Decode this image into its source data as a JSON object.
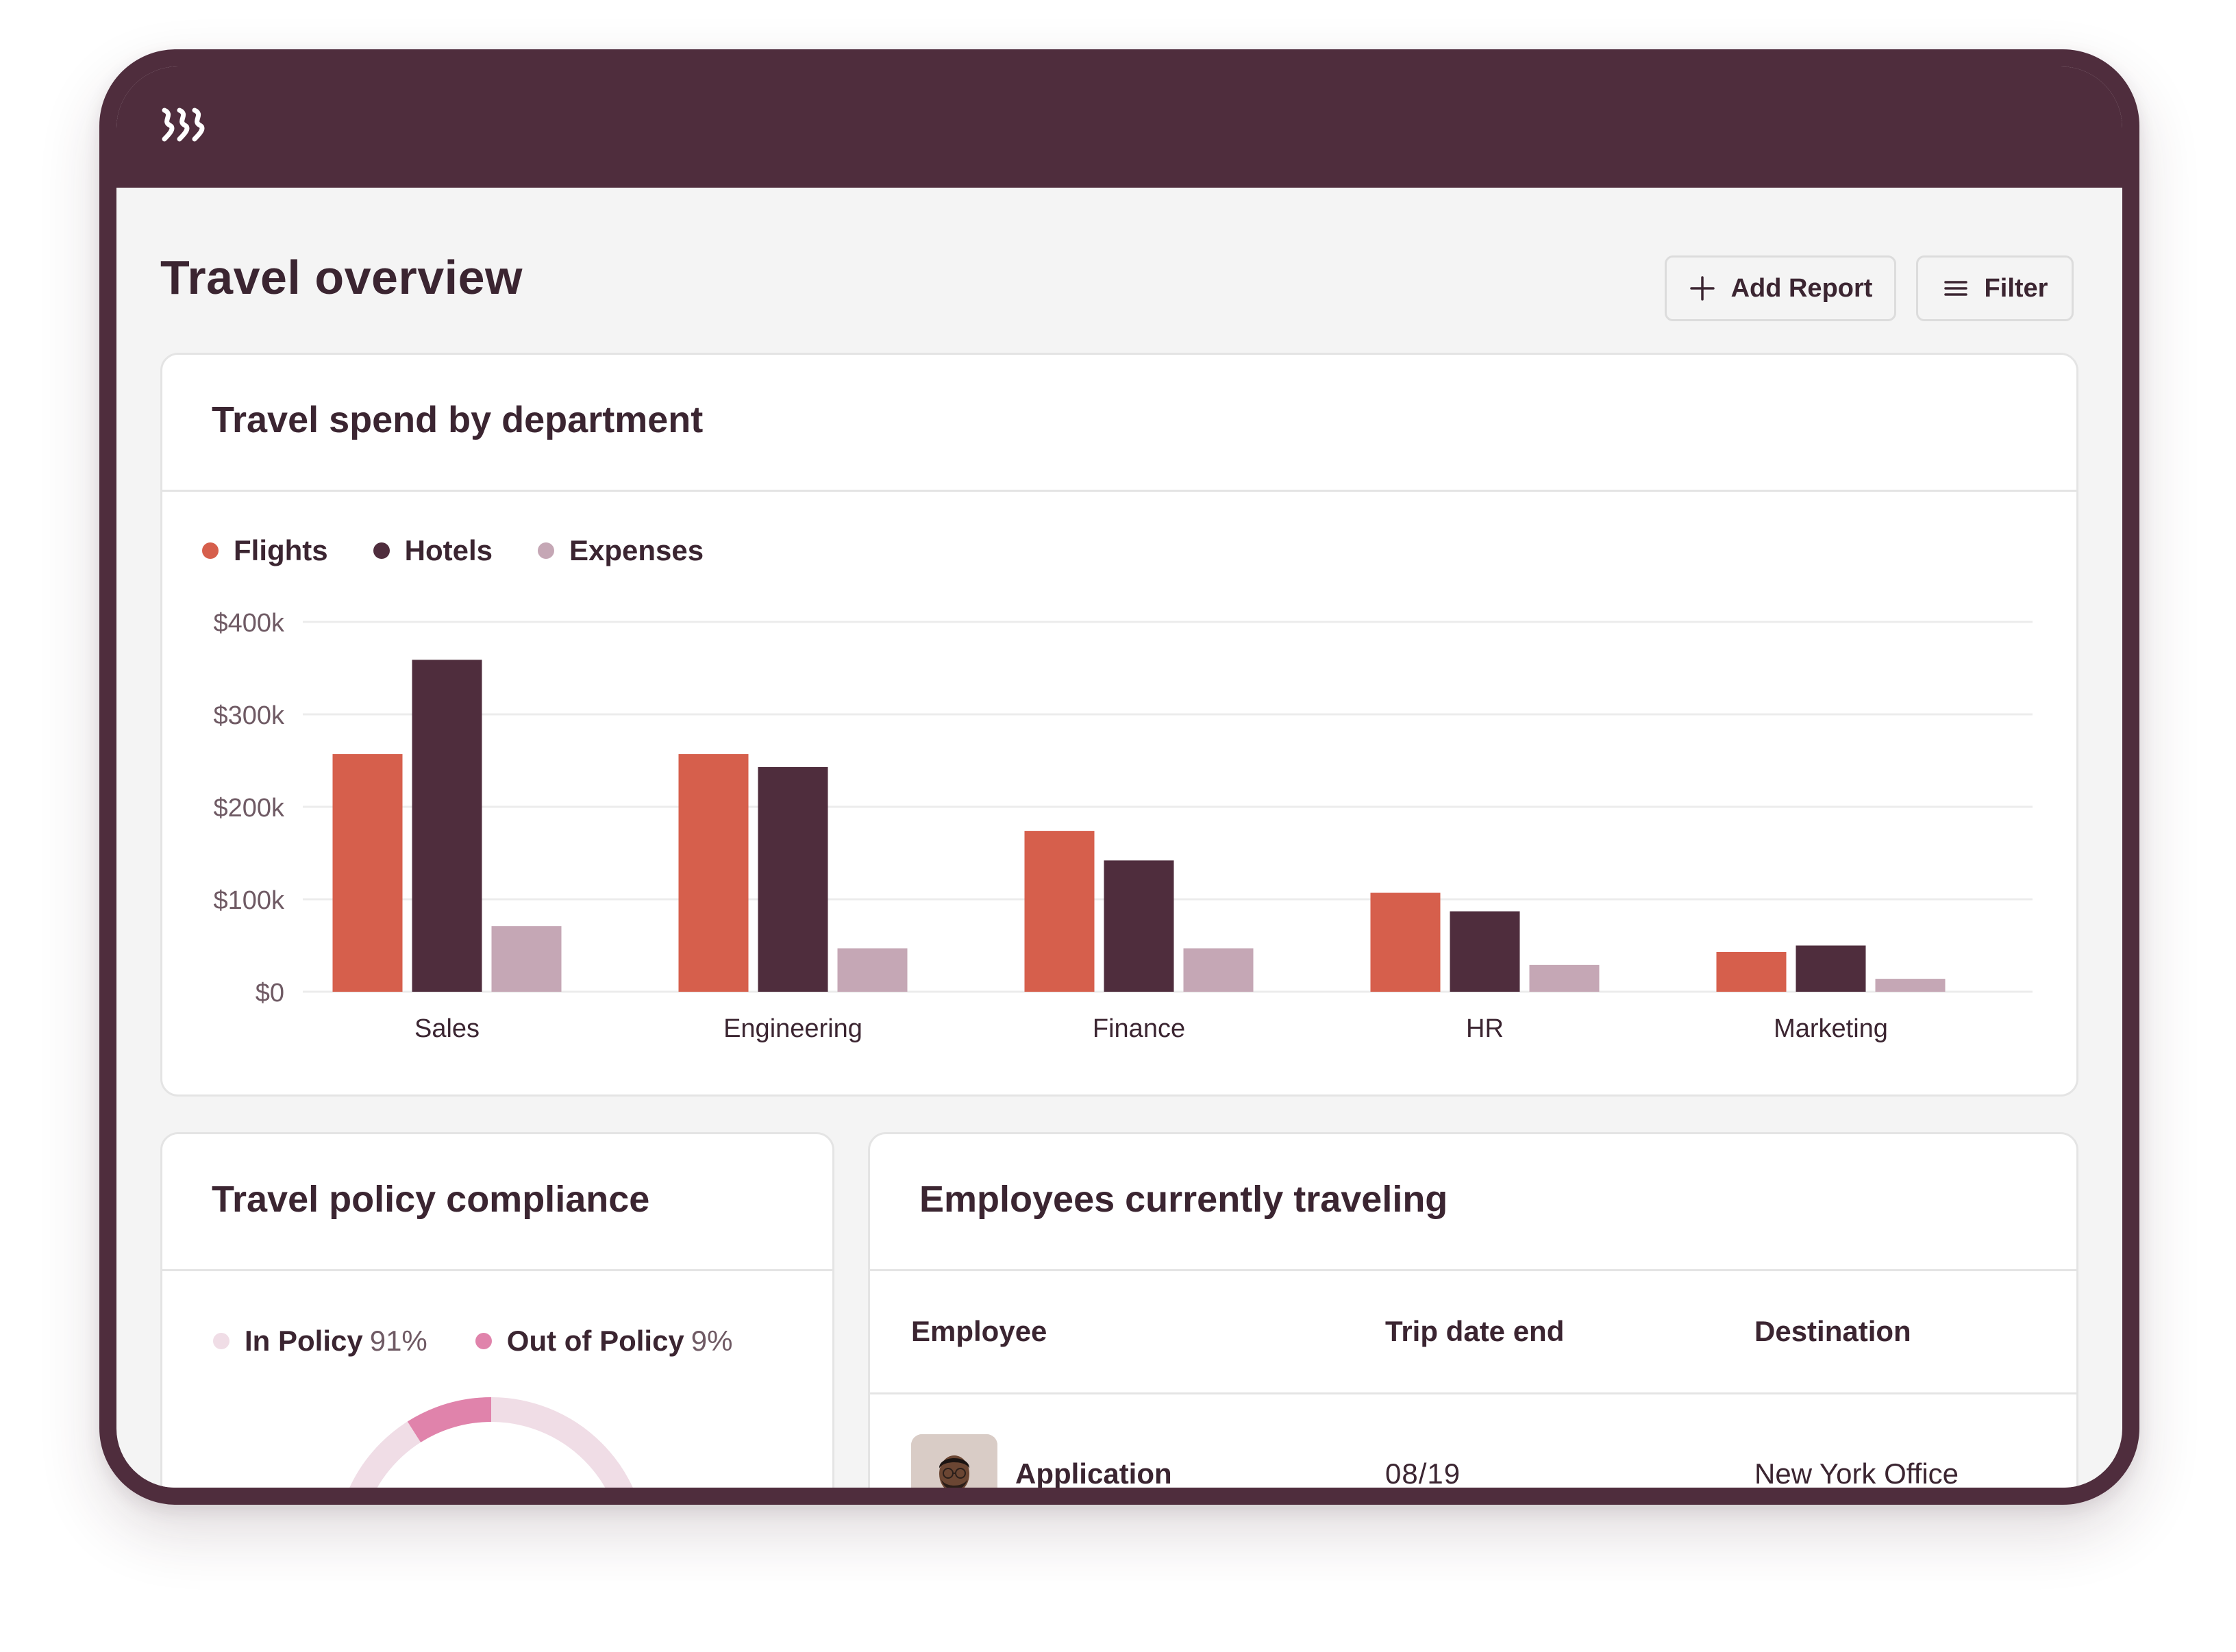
{
  "app": {
    "logo_icon": "brand-logo-icon",
    "colors": {
      "brand": "#4f2d3d",
      "flights": "#d65f4c",
      "hotels": "#4f2d3d",
      "expenses": "#c5a7b5",
      "in_policy": "#f0dde6",
      "out_of_policy": "#e083ab"
    }
  },
  "header": {
    "title": "Travel overview",
    "add_report_label": "Add Report",
    "add_report_icon": "plus-icon",
    "filter_label": "Filter",
    "filter_icon": "menu-lines-icon"
  },
  "spend_card": {
    "title": "Travel spend by department"
  },
  "chart_data": {
    "type": "bar",
    "title": "Travel spend by department",
    "categories": [
      "Sales",
      "Engineering",
      "Finance",
      "HR",
      "Marketing"
    ],
    "series": [
      {
        "name": "Flights",
        "values": [
          257000,
          257000,
          174000,
          107000,
          43000
        ]
      },
      {
        "name": "Hotels",
        "values": [
          359000,
          243000,
          142000,
          87000,
          50000
        ]
      },
      {
        "name": "Expenses",
        "values": [
          71000,
          47000,
          47000,
          29000,
          14000
        ]
      }
    ],
    "ylim": [
      0,
      400000
    ],
    "yticks": [
      0,
      100000,
      200000,
      300000,
      400000
    ],
    "ytick_labels": [
      "$0",
      "$100k",
      "$200k",
      "$300k",
      "$400k"
    ],
    "xlabel": "",
    "ylabel": "",
    "grid": true,
    "legend": "top-left"
  },
  "compliance_card": {
    "title": "Travel policy compliance",
    "in_policy_label": "In Policy",
    "in_policy_pct": "91%",
    "out_policy_label": "Out of Policy",
    "out_policy_pct": "9%",
    "in_policy_value": 91,
    "out_policy_value": 9
  },
  "employees_card": {
    "title": "Employees currently traveling",
    "columns": [
      "Employee",
      "Trip date end",
      "Destination"
    ],
    "rows": [
      {
        "employee": "Application",
        "trip_date_end": "08/19",
        "destination": "New York Office"
      }
    ]
  }
}
